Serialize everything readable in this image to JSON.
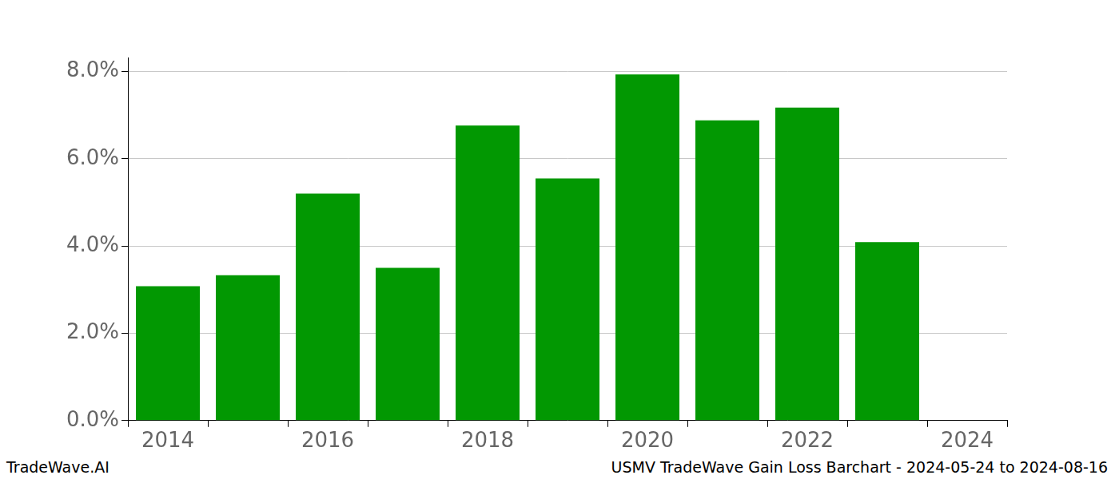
{
  "chart_data": {
    "type": "bar",
    "title": "USMV TradeWave Gain Loss Barchart - 2024-05-24 to 2024-08-16",
    "annotations": [
      "TradeWave.AI"
    ],
    "categories": [
      "2014",
      null,
      "2016",
      null,
      "2018",
      null,
      "2020",
      null,
      "2022",
      null,
      "2024"
    ],
    "values": [
      3.08,
      3.33,
      5.2,
      3.5,
      6.76,
      5.55,
      7.93,
      6.88,
      7.17,
      4.09,
      null
    ],
    "color": "#029802",
    "ylim": [
      0,
      8.32
    ],
    "yticks": [
      {
        "value": 0,
        "label": "0.0%"
      },
      {
        "value": 2,
        "label": "2.0%"
      },
      {
        "value": 4,
        "label": "4.0%"
      },
      {
        "value": 6,
        "label": "6.0%"
      },
      {
        "value": 8,
        "label": "8.0%"
      }
    ],
    "grid": true
  }
}
